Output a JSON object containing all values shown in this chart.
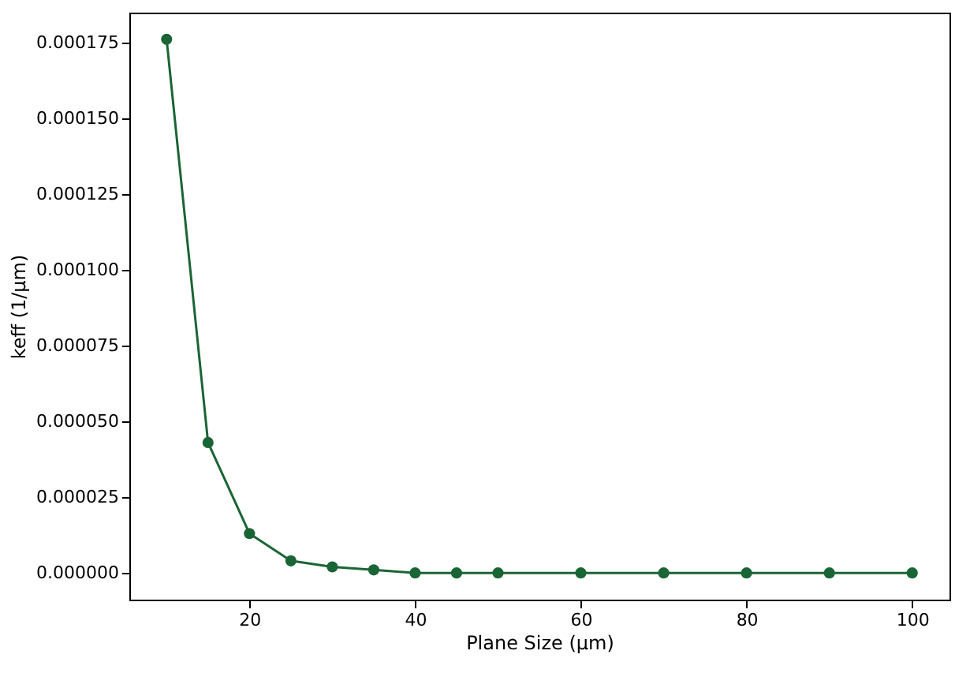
{
  "chart_data": {
    "type": "line",
    "xlabel": "Plane Size (μm)",
    "ylabel": "keff (1/μm)",
    "x": [
      10,
      15,
      20,
      25,
      30,
      35,
      40,
      45,
      50,
      60,
      70,
      80,
      90,
      100
    ],
    "series": [
      {
        "color": "#1a6535",
        "values": [
          0.000176,
          4.3e-05,
          1.3e-05,
          4e-06,
          2e-06,
          1e-06,
          0,
          0,
          0,
          0,
          0,
          0,
          0,
          0
        ]
      }
    ],
    "xlim": [
      5.5,
      104.5
    ],
    "xticks": [
      20,
      40,
      60,
      80,
      100
    ],
    "ylim": [
      -8.8e-06,
      0.0001848
    ],
    "yticks": [
      {
        "value": 0,
        "label": "0.000000"
      },
      {
        "value": 2.5e-05,
        "label": "0.000025"
      },
      {
        "value": 5e-05,
        "label": "0.000050"
      },
      {
        "value": 7.5e-05,
        "label": "0.000075"
      },
      {
        "value": 0.0001,
        "label": "0.000100"
      },
      {
        "value": 0.000125,
        "label": "0.000125"
      },
      {
        "value": 0.00015,
        "label": "0.000150"
      },
      {
        "value": 0.000175,
        "label": "0.000175"
      }
    ],
    "marker": "circle",
    "line_style": "solid",
    "grid": false
  }
}
